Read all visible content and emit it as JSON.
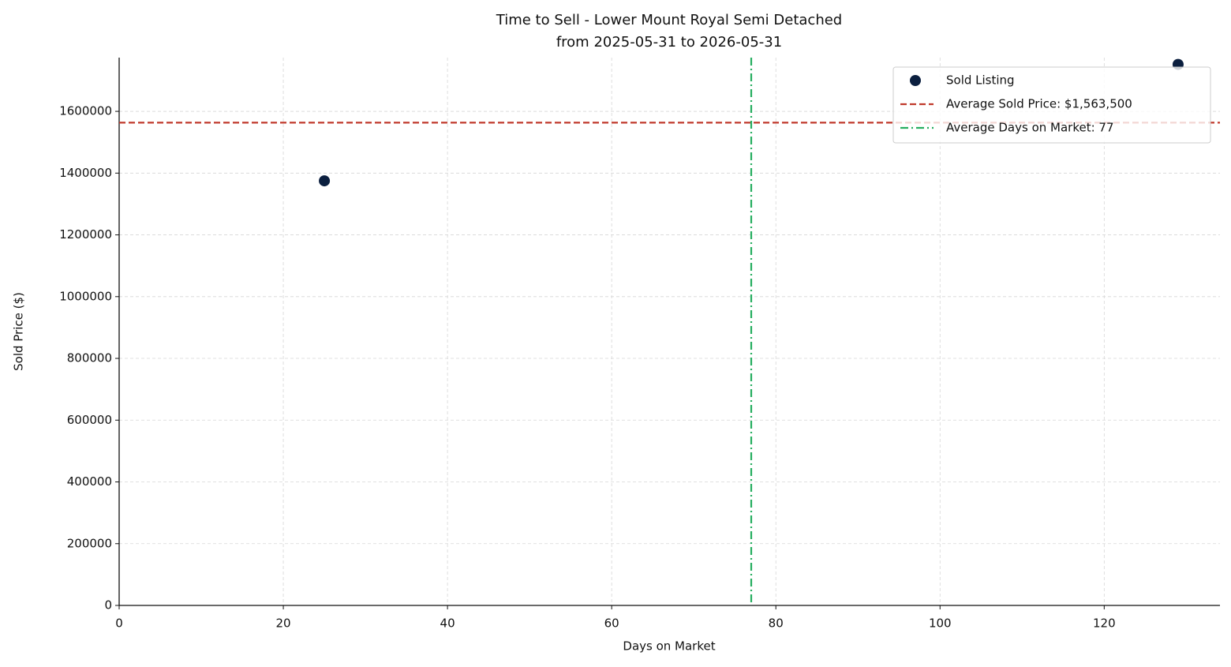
{
  "chart_data": {
    "type": "scatter",
    "title": "Time to Sell - Lower Mount Royal Semi Detached",
    "subtitle": "from 2025-05-31 to 2026-05-31",
    "x_label": "Days on Market",
    "y_label": "Sold Price ($)",
    "xlim": [
      0,
      134.1
    ],
    "ylim": [
      0,
      1774000
    ],
    "xticks": [
      0,
      20,
      40,
      60,
      80,
      100,
      120
    ],
    "yticks": [
      0,
      200000,
      400000,
      600000,
      800000,
      1000000,
      1200000,
      1400000,
      1600000
    ],
    "grid": true,
    "legend": "upper right",
    "series": [
      {
        "name": "Sold Listing",
        "color": "#0b1f3f",
        "x": [
          25,
          129
        ],
        "values": [
          1375000,
          1752000
        ]
      }
    ],
    "hlines": [
      {
        "name": "Average Sold Price: $1,563,500",
        "value": 1563500,
        "color": "#c0392b"
      }
    ],
    "vlines": [
      {
        "name": "Average Days on Market: 77",
        "value": 77,
        "color": "#27ae60"
      }
    ]
  }
}
